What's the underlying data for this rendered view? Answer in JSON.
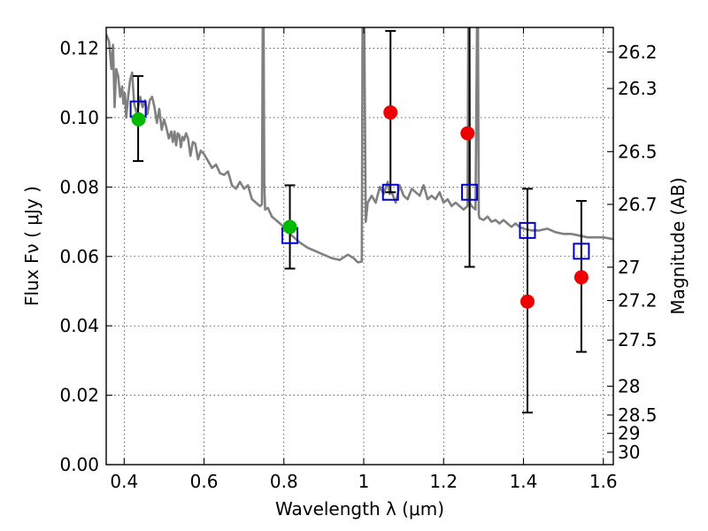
{
  "chart_data": {
    "type": "scatter",
    "xlabel": "Wavelength  λ (μm)",
    "ylabel": "Flux  Fν  ( μJy )",
    "y2label": "Magnitude (AB)",
    "xlim": [
      0.355,
      1.625
    ],
    "ylim": [
      0.0,
      0.126
    ],
    "grid": true,
    "x_ticks": [
      0.4,
      0.6,
      0.8,
      1.0,
      1.2,
      1.4,
      1.6
    ],
    "x_tick_labels": [
      "0.4",
      "0.6",
      "0.8",
      "1",
      "1.2",
      "1.4",
      "1.6"
    ],
    "y_ticks": [
      0.0,
      0.02,
      0.04,
      0.06,
      0.08,
      0.1,
      0.12
    ],
    "y_tick_labels": [
      "0.00",
      "0.02",
      "0.04",
      "0.06",
      "0.08",
      "0.10",
      "0.12"
    ],
    "y2_ticks": [
      {
        "label": "26.2",
        "flux": 0.1189
      },
      {
        "label": "26.3",
        "flux": 0.1084
      },
      {
        "label": "26.5",
        "flux": 0.0902
      },
      {
        "label": "26.7",
        "flux": 0.075
      },
      {
        "label": "27",
        "flux": 0.0569
      },
      {
        "label": "27.2",
        "flux": 0.0473
      },
      {
        "label": "27.5",
        "flux": 0.0359
      },
      {
        "label": "28",
        "flux": 0.0226
      },
      {
        "label": "28.5",
        "flux": 0.0143
      },
      {
        "label": "29",
        "flux": 0.009
      },
      {
        "label": "30",
        "flux": 0.0036
      }
    ],
    "series": [
      {
        "kind": "line",
        "color": "#808080",
        "x": [
          0.355,
          0.362,
          0.368,
          0.372,
          0.376,
          0.38,
          0.385,
          0.39,
          0.395,
          0.398,
          0.402,
          0.405,
          0.41,
          0.415,
          0.42,
          0.425,
          0.432,
          0.44,
          0.446,
          0.452,
          0.458,
          0.464,
          0.47,
          0.476,
          0.482,
          0.488,
          0.494,
          0.5,
          0.506,
          0.512,
          0.518,
          0.522,
          0.526,
          0.53,
          0.534,
          0.538,
          0.542,
          0.546,
          0.55,
          0.555,
          0.56,
          0.566,
          0.572,
          0.578,
          0.585,
          0.592,
          0.6,
          0.61,
          0.62,
          0.63,
          0.64,
          0.65,
          0.66,
          0.67,
          0.68,
          0.69,
          0.7,
          0.71,
          0.72,
          0.73,
          0.74,
          0.745,
          0.747,
          0.749,
          0.751,
          0.753,
          0.76,
          0.77,
          0.78,
          0.79,
          0.8,
          0.82,
          0.84,
          0.86,
          0.88,
          0.9,
          0.92,
          0.94,
          0.96,
          0.975,
          0.985,
          0.995,
          0.997,
          0.999,
          1.001,
          1.005,
          1.01,
          1.02,
          1.03,
          1.04,
          1.05,
          1.06,
          1.065,
          1.07,
          1.08,
          1.09,
          1.1,
          1.11,
          1.12,
          1.13,
          1.14,
          1.15,
          1.16,
          1.17,
          1.18,
          1.19,
          1.2,
          1.21,
          1.22,
          1.23,
          1.24,
          1.25,
          1.26,
          1.262,
          1.264,
          1.266,
          1.27,
          1.28,
          1.284,
          1.286,
          1.288,
          1.29,
          1.3,
          1.31,
          1.32,
          1.33,
          1.34,
          1.35,
          1.36,
          1.37,
          1.38,
          1.39,
          1.4,
          1.42,
          1.44,
          1.46,
          1.48,
          1.5,
          1.52,
          1.54,
          1.56,
          1.58,
          1.6,
          1.625
        ],
        "y": [
          0.124,
          0.122,
          0.114,
          0.121,
          0.103,
          0.114,
          0.112,
          0.106,
          0.109,
          0.104,
          0.107,
          0.1,
          0.106,
          0.111,
          0.113,
          0.104,
          0.101,
          0.106,
          0.103,
          0.105,
          0.101,
          0.105,
          0.106,
          0.103,
          0.0985,
          0.1025,
          0.0965,
          0.0995,
          0.097,
          0.094,
          0.096,
          0.093,
          0.096,
          0.092,
          0.0955,
          0.095,
          0.0915,
          0.0945,
          0.0935,
          0.0955,
          0.094,
          0.089,
          0.093,
          0.0925,
          0.088,
          0.0905,
          0.0895,
          0.0875,
          0.0855,
          0.0865,
          0.084,
          0.0835,
          0.0845,
          0.0805,
          0.0795,
          0.0815,
          0.0795,
          0.0805,
          0.0765,
          0.0755,
          0.0745,
          0.075,
          0.13,
          0.13,
          0.08,
          0.0735,
          0.074,
          0.0715,
          0.0705,
          0.0695,
          0.0685,
          0.066,
          0.064,
          0.0625,
          0.0615,
          0.0605,
          0.0595,
          0.059,
          0.0605,
          0.0595,
          0.0583,
          0.0585,
          0.13,
          0.13,
          0.13,
          0.07,
          0.0755,
          0.0775,
          0.0755,
          0.08,
          0.078,
          0.0815,
          0.078,
          0.0785,
          0.0755,
          0.0805,
          0.0775,
          0.0765,
          0.0795,
          0.0785,
          0.0775,
          0.0805,
          0.0765,
          0.0775,
          0.0765,
          0.0785,
          0.0755,
          0.0765,
          0.0745,
          0.0755,
          0.0745,
          0.0735,
          0.0745,
          0.13,
          0.13,
          0.0755,
          0.0745,
          0.0735,
          0.13,
          0.13,
          0.072,
          0.071,
          0.0705,
          0.0715,
          0.07,
          0.0705,
          0.0695,
          0.0705,
          0.0695,
          0.0685,
          0.0695,
          0.0685,
          0.068,
          0.0675,
          0.0675,
          0.068,
          0.067,
          0.0665,
          0.0665,
          0.066,
          0.0655,
          0.0655,
          0.0655,
          0.065
        ]
      },
      {
        "kind": "open-squares",
        "color": "#0000cc",
        "x": [
          0.435,
          0.815,
          1.067,
          1.265,
          1.41,
          1.545
        ],
        "y": [
          0.1025,
          0.066,
          0.0785,
          0.0785,
          0.0675,
          0.0615
        ],
        "yerr_low": [
          0.0875,
          0.0565,
          0.0785,
          0.057,
          0.015,
          0.0325
        ],
        "yerr_high": [
          0.112,
          0.0805,
          0.125,
          0.128,
          0.0795,
          0.076
        ]
      },
      {
        "kind": "filled-circles",
        "color": "#00bb00",
        "x": [
          0.436,
          0.815
        ],
        "y": [
          0.0995,
          0.0685
        ]
      },
      {
        "kind": "filled-circles",
        "color": "#ee0000",
        "x": [
          1.067,
          1.26,
          1.41,
          1.545
        ],
        "y": [
          0.1015,
          0.0955,
          0.047,
          0.054
        ]
      }
    ]
  }
}
